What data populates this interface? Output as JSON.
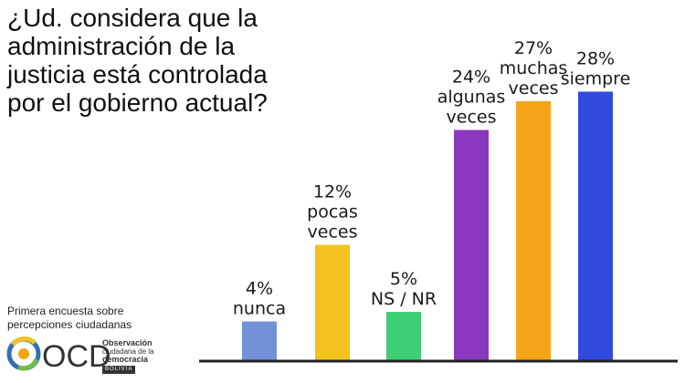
{
  "question_lines": [
    "¿Ud. considera que la",
    "administración de la",
    "justicia está controlada",
    "por el gobierno actual?"
  ],
  "source_lines": [
    "Primera encuesta sobre",
    "percepciones ciudadanas"
  ],
  "logo": {
    "acronym": "OCD",
    "name_lines": [
      "Observación",
      "ciudadana de la",
      "democracia"
    ],
    "country": "BOLIVIA"
  },
  "colors": {
    "nunca": "#7391d9",
    "pocas_veces": "#f2c21f",
    "ns_nr": "#3ecf76",
    "algunas_veces": "#8a38c0",
    "muchas_veces": "#f5a418",
    "siempre": "#3249dd",
    "axis": "#222222"
  },
  "chart_data": {
    "type": "bar",
    "categories": [
      "nunca",
      "pocas veces",
      "NS / NR",
      "algunas veces",
      "muchas veces",
      "siempre"
    ],
    "values": [
      4,
      12,
      5,
      24,
      27,
      28
    ],
    "value_labels": [
      "4%",
      "12%",
      "5%",
      "24%",
      "27%",
      "28%"
    ],
    "category_label_lines": [
      [
        "nunca"
      ],
      [
        "pocas",
        "veces"
      ],
      [
        "NS / NR"
      ],
      [
        "algunas",
        "veces"
      ],
      [
        "muchas",
        "veces"
      ],
      [
        "siempre"
      ]
    ],
    "title": "",
    "xlabel": "",
    "ylabel": "",
    "ylim": [
      0,
      28
    ],
    "grid": false,
    "legend": "none"
  }
}
